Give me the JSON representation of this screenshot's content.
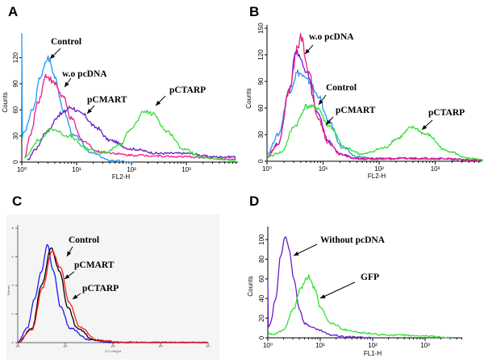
{
  "chart_data": [
    {
      "panel": "A",
      "type": "line",
      "x_scale": "log10",
      "xlabel": "FL2-H",
      "ylabel": "Counts",
      "xlim_log10": [
        0,
        3.9
      ],
      "ylim": [
        0,
        140
      ],
      "x_tick_labels": [
        "10⁰",
        "10¹",
        "10²",
        "10³"
      ],
      "y_ticks": [
        0,
        30,
        60,
        90,
        120
      ],
      "series": [
        {
          "name": "Control",
          "color": "#2196f3",
          "x_log10": [
            0,
            0.01,
            0.05,
            0.2,
            0.35,
            0.48,
            0.6,
            0.75,
            0.95,
            1.3,
            1.6,
            2.0
          ],
          "y": [
            150,
            30,
            35,
            60,
            100,
            120,
            100,
            60,
            30,
            10,
            2,
            0
          ]
        },
        {
          "name": "w.o pcDNA",
          "color": "#ee1f86",
          "x_log10": [
            0.05,
            0.15,
            0.3,
            0.45,
            0.6,
            0.75,
            0.9,
            1.1,
            1.4,
            2.0,
            3.0,
            3.9
          ],
          "y": [
            5,
            30,
            70,
            100,
            90,
            75,
            50,
            25,
            12,
            8,
            6,
            3
          ]
        },
        {
          "name": "pCMART",
          "color": "#6a1bc8",
          "x_log10": [
            0.1,
            0.25,
            0.45,
            0.7,
            0.9,
            1.1,
            1.35,
            1.6,
            2.0,
            2.5,
            3.0,
            3.5,
            3.9
          ],
          "y": [
            2,
            15,
            35,
            55,
            63,
            55,
            40,
            25,
            15,
            10,
            10,
            6,
            6
          ]
        },
        {
          "name": "pCTARP",
          "color": "#33e033",
          "x_log10": [
            0.05,
            0.3,
            0.55,
            0.85,
            1.2,
            1.5,
            1.8,
            2.0,
            2.25,
            2.4,
            2.65,
            2.95,
            3.3,
            3.9
          ],
          "y": [
            5,
            25,
            38,
            30,
            15,
            10,
            20,
            40,
            58,
            55,
            35,
            15,
            5,
            2
          ]
        }
      ],
      "annotations": [
        "Control",
        "w.o pcDNA",
        "pCMART",
        "pCTARP"
      ]
    },
    {
      "panel": "B",
      "type": "line",
      "x_scale": "log10",
      "xlabel": "FL2-H",
      "ylabel": "Counts",
      "xlim_log10": [
        0,
        3.85
      ],
      "ylim": [
        0,
        150
      ],
      "x_tick_labels": [
        "10⁰",
        "10¹",
        "10²",
        "10³"
      ],
      "y_ticks": [
        0,
        30,
        60,
        90,
        120,
        150
      ],
      "series": [
        {
          "name": "Control",
          "color": "#2196f3",
          "x_log10": [
            0,
            0.2,
            0.4,
            0.55,
            0.75,
            0.9,
            1.1,
            1.35,
            1.6,
            2.0
          ],
          "y": [
            8,
            30,
            80,
            100,
            90,
            75,
            45,
            15,
            5,
            2
          ]
        },
        {
          "name": "pCMART",
          "color": "#6a1bc8",
          "x_log10": [
            0,
            0.2,
            0.4,
            0.52,
            0.7,
            0.9,
            1.1,
            1.3,
            1.6,
            3.0,
            3.85
          ],
          "y": [
            5,
            20,
            80,
            125,
            100,
            55,
            22,
            8,
            3,
            3,
            1
          ]
        },
        {
          "name": "w.o pcDNA",
          "color": "#ee1f86",
          "x_log10": [
            0,
            0.2,
            0.4,
            0.55,
            0.6,
            0.75,
            0.9,
            1.1,
            1.3,
            1.6,
            3.0,
            3.85
          ],
          "y": [
            5,
            20,
            80,
            130,
            140,
            100,
            50,
            20,
            8,
            3,
            3,
            1
          ]
        },
        {
          "name": "pCTARP",
          "color": "#33e033",
          "x_log10": [
            0,
            0.25,
            0.5,
            0.7,
            0.9,
            1.1,
            1.4,
            1.7,
            2.1,
            2.3,
            2.6,
            2.85,
            3.2,
            3.6,
            3.85
          ],
          "y": [
            5,
            10,
            40,
            62,
            60,
            40,
            15,
            8,
            15,
            25,
            38,
            30,
            12,
            3,
            1
          ]
        }
      ],
      "annotations": [
        "w.o pcDNA",
        "Control",
        "pCMART",
        "pCTARP"
      ]
    },
    {
      "panel": "C",
      "type": "line",
      "x_scale": "log10",
      "xlabel": "FL1-Height",
      "ylabel": "Events",
      "xlim_log10": [
        0,
        4
      ],
      "ylim": [
        0,
        8
      ],
      "x_tick_labels": [
        "10⁰",
        "10¹",
        "10²",
        "10³",
        "10⁴"
      ],
      "y_ticks": [
        0,
        2,
        4,
        6,
        8
      ],
      "series": [
        {
          "name": "Control",
          "color": "#1a1aff",
          "x_log10": [
            0,
            0.2,
            0.35,
            0.5,
            0.62,
            0.75,
            0.9,
            1.1,
            1.5,
            2.0,
            4.0
          ],
          "y": [
            0,
            1,
            3,
            5,
            6.8,
            5,
            2.5,
            1,
            0.2,
            0,
            0
          ]
        },
        {
          "name": "pCMART",
          "color": "#000000",
          "x_log10": [
            0,
            0.3,
            0.5,
            0.7,
            0.88,
            1.05,
            1.25,
            1.6,
            2.2,
            4.0
          ],
          "y": [
            0,
            1,
            4,
            6.6,
            5,
            2.5,
            1,
            0.2,
            0,
            0
          ]
        },
        {
          "name": "pCTARP",
          "color": "#ff1a1a",
          "x_log10": [
            0,
            0.3,
            0.52,
            0.72,
            0.9,
            1.08,
            1.3,
            1.65,
            2.2,
            4.0
          ],
          "y": [
            0,
            0.9,
            3.8,
            6.4,
            5.2,
            2.8,
            1.1,
            0.2,
            0,
            0
          ]
        }
      ],
      "annotations": [
        "Control",
        "pCMART",
        "pCTARP"
      ]
    },
    {
      "panel": "D",
      "type": "line",
      "x_scale": "log10",
      "xlabel": "FL1-H",
      "ylabel": "Counts",
      "xlim_log10": [
        0,
        3.7
      ],
      "ylim": [
        0,
        110
      ],
      "x_tick_labels": [
        "10⁰",
        "10¹",
        "10²",
        "10³"
      ],
      "y_ticks": [
        0,
        20,
        40,
        60,
        80,
        100
      ],
      "series": [
        {
          "name": "Without pcDNA",
          "color": "#6a1bc8",
          "x_log10": [
            0,
            0.01,
            0.05,
            0.15,
            0.25,
            0.33,
            0.4,
            0.5,
            0.6,
            0.7,
            0.8,
            0.95,
            1.2,
            1.5,
            2.0
          ],
          "y": [
            60,
            10,
            15,
            40,
            85,
            103,
            90,
            60,
            30,
            15,
            12,
            8,
            3,
            1,
            0
          ]
        },
        {
          "name": "GFP",
          "color": "#33e033",
          "x_log10": [
            0,
            0.1,
            0.3,
            0.5,
            0.62,
            0.78,
            0.9,
            1.0,
            1.2,
            1.5,
            1.8,
            2.2,
            3.0,
            3.5
          ],
          "y": [
            5,
            3,
            8,
            30,
            50,
            62,
            50,
            30,
            15,
            8,
            5,
            3,
            2,
            0
          ]
        }
      ],
      "annotations": [
        "Without pcDNA",
        "GFP"
      ]
    }
  ]
}
